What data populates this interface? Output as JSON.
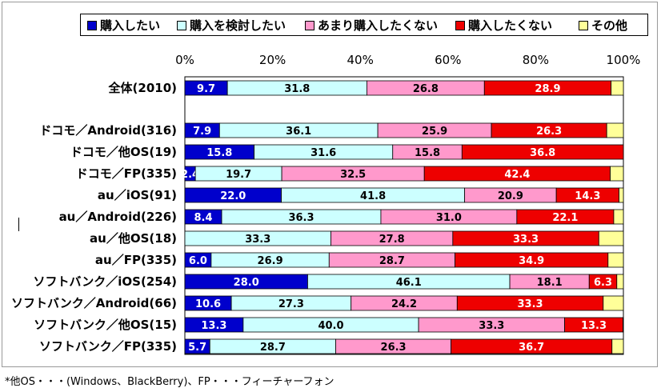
{
  "colors": {
    "buy": "#0000cc",
    "consider": "#ccffff",
    "not_really": "#ff99cc",
    "no": "#ee0000",
    "other": "#ffff99"
  },
  "chart_data": {
    "type": "bar",
    "orientation": "horizontal",
    "stacked": "percent",
    "xlim": [
      0,
      100
    ],
    "x_ticks": [
      "0%",
      "20%",
      "40%",
      "60%",
      "80%",
      "100%"
    ],
    "legend_position": "top",
    "categories": [
      "全体(2010)",
      "ドコモ／Android(316)",
      "ドコモ／他OS(19)",
      "ドコモ／FP(335)",
      "au／iOS(91)",
      "au／Android(226)",
      "au／他OS(18)",
      "au／FP(335)",
      "ソフトバンク／iOS(254)",
      "ソフトバンク／Android(66)",
      "ソフトバンク／他OS(15)",
      "ソフトバンク／FP(335)"
    ],
    "series": [
      {
        "name": "購入したい",
        "color": "#0000cc",
        "label_color": "#ffffff",
        "values": [
          9.7,
          7.9,
          15.8,
          2.4,
          22.0,
          8.4,
          0,
          6.0,
          28.0,
          10.6,
          13.3,
          5.7
        ]
      },
      {
        "name": "購入を検討したい",
        "color": "#ccffff",
        "label_color": "#000000",
        "values": [
          31.8,
          36.1,
          31.6,
          19.7,
          41.8,
          36.3,
          33.3,
          26.9,
          46.1,
          27.3,
          40.0,
          28.7
        ]
      },
      {
        "name": "あまり購入したくない",
        "color": "#ff99cc",
        "label_color": "#000000",
        "values": [
          26.8,
          25.9,
          15.8,
          32.5,
          20.9,
          31.0,
          27.8,
          28.7,
          18.1,
          24.2,
          33.3,
          26.3
        ]
      },
      {
        "name": "購入したくない",
        "color": "#ee0000",
        "label_color": "#ffffff",
        "values": [
          28.9,
          26.3,
          36.8,
          42.4,
          14.3,
          22.1,
          33.3,
          34.9,
          6.3,
          33.3,
          13.3,
          36.7
        ]
      },
      {
        "name": "その他",
        "color": "#ffff99",
        "label_color": "#000000",
        "values": [
          2.8,
          3.8,
          0,
          3.0,
          1.0,
          2.2,
          5.6,
          3.5,
          1.5,
          4.6,
          0.1,
          2.6
        ]
      }
    ]
  },
  "footnote": "*他OS・・・(Windows、BlackBerry)、FP・・・フィーチャーフォン"
}
